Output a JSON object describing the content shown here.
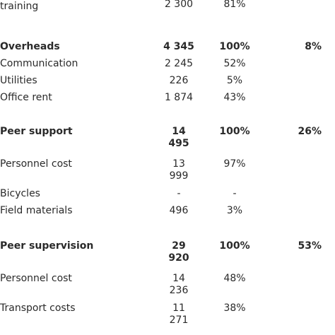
{
  "table": {
    "rows": [
      {
        "label": "Manual adaptation and initial training",
        "amount": "2 300",
        "percent": "81%",
        "top": -8
      },
      {
        "label": "Overheads",
        "amount": "4 345",
        "percent": "100%",
        "share": "8%",
        "bold": true
      },
      {
        "label": "Communication",
        "amount": "2 245",
        "percent": "52%"
      },
      {
        "label": "Utilities",
        "amount": "226",
        "percent": "5%"
      },
      {
        "label": "Office rent",
        "amount": "1 874",
        "percent": "43%"
      },
      {
        "label": "Peer support",
        "amount": "14 495",
        "percent": "100%",
        "share": "26%",
        "bold": true
      },
      {
        "label": "Personnel cost",
        "amount": "13 999",
        "percent": "97%"
      },
      {
        "label": "Bicycles",
        "amount": "-",
        "percent": "-"
      },
      {
        "label": "Field materials",
        "amount": "496",
        "percent": "3%"
      },
      {
        "label": "Peer supervision",
        "amount": "29 920",
        "percent": "100%",
        "share": "53%",
        "bold": true
      },
      {
        "label": "Personnel cost",
        "amount": "14 236",
        "percent": "48%"
      },
      {
        "label": "Transport costs",
        "amount": "11 271",
        "percent": "38%"
      }
    ]
  }
}
